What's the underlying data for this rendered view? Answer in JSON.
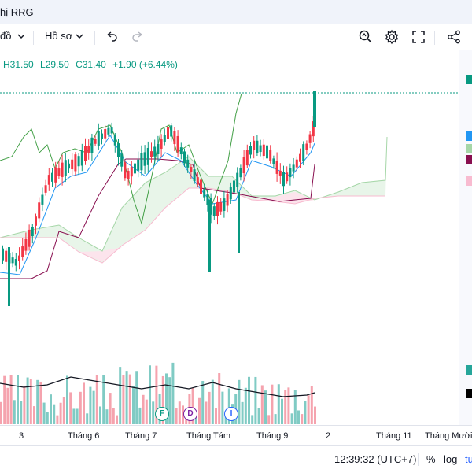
{
  "window": {
    "title": "hị RRG"
  },
  "toolbar": {
    "chart_type_label": "đồ",
    "profile_label": "Hồ sơ",
    "icons": [
      "chevron-down-icon",
      "undo-icon",
      "redo-icon",
      "snapshot-search-icon",
      "gear-icon",
      "fullscreen-icon",
      "share-icon"
    ]
  },
  "ohlc": {
    "high": "H31.50",
    "low": "L29.50",
    "close": "C31.40",
    "change": "+1.90 (+6.44%)"
  },
  "events": [
    {
      "letter": "F",
      "color": "#089981"
    },
    {
      "letter": "D",
      "color": "#7b1fa2"
    },
    {
      "letter": "I",
      "color": "#2962ff"
    }
  ],
  "xaxis": {
    "labels": [
      "3",
      "Tháng 6",
      "Tháng 7",
      "Tháng Tám",
      "Tháng 9",
      "2",
      "Tháng 11",
      "Tháng Mười"
    ]
  },
  "bottom": {
    "time": "12:39:32 (UTC+7)",
    "percent": "%",
    "log": "log",
    "auto": "tự"
  },
  "right_markers": [
    "#089981",
    "#2196f3",
    "#a5d6a7",
    "#880e4f",
    "#f8bbd0",
    "#26a69a",
    "#000000"
  ],
  "chart_data": {
    "type": "candlestick",
    "title": "",
    "x_start": "3",
    "x_end": "Tháng Mười",
    "indicators": [
      "ichimoku",
      "volume",
      "volume-ma"
    ],
    "last_candle": {
      "high": 31.5,
      "low": 29.5,
      "close": 31.4,
      "change": 1.9,
      "change_pct": 6.44
    },
    "price_range_estimate": [
      18,
      32
    ],
    "grid": false
  }
}
